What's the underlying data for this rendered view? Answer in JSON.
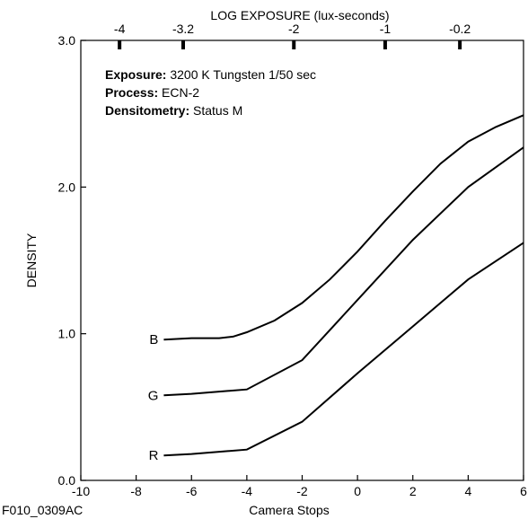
{
  "chart_data": {
    "type": "line",
    "top_axis_title": "LOG EXPOSURE (lux-seconds)",
    "top_ticks": [
      "-4",
      "-3.2",
      "-2",
      "-1",
      "-0.2"
    ],
    "top_tick_positions": [
      -8.6,
      -6.3,
      -2.3,
      1.0,
      3.7
    ],
    "ylabel": "DENSITY",
    "xlabel": "Camera Stops",
    "figure_id": "F010_0309AC",
    "xlim": [
      -10,
      6
    ],
    "ylim": [
      0.0,
      3.0
    ],
    "x_ticks": [
      "-10",
      "-8",
      "-6",
      "-4",
      "-2",
      "0",
      "2",
      "4",
      "6"
    ],
    "y_ticks": [
      "0.0",
      "1.0",
      "2.0",
      "3.0"
    ],
    "info_lines": [
      {
        "key": "Exposure:",
        "value": "3200 K Tungsten 1/50 sec"
      },
      {
        "key": "Process:",
        "value": "ECN-2"
      },
      {
        "key": "Densitometry:",
        "value": "Status M"
      }
    ],
    "series": [
      {
        "name": "B",
        "color": "#000000",
        "x": [
          -7,
          -6,
          -5,
          -4.5,
          -4,
          -3,
          -2,
          -1,
          0,
          1,
          2,
          3,
          4,
          5,
          6
        ],
        "y": [
          0.96,
          0.97,
          0.97,
          0.98,
          1.01,
          1.09,
          1.21,
          1.37,
          1.56,
          1.77,
          1.97,
          2.16,
          2.31,
          2.41,
          2.49
        ]
      },
      {
        "name": "G",
        "color": "#000000",
        "x": [
          -7,
          -6,
          -4,
          -2,
          0,
          2,
          4,
          6
        ],
        "y": [
          0.58,
          0.59,
          0.62,
          0.82,
          1.23,
          1.64,
          2.0,
          2.27
        ]
      },
      {
        "name": "R",
        "color": "#000000",
        "x": [
          -7,
          -6,
          -4,
          -2,
          0,
          2,
          4,
          6
        ],
        "y": [
          0.17,
          0.18,
          0.21,
          0.4,
          0.73,
          1.05,
          1.37,
          1.62
        ]
      }
    ]
  }
}
